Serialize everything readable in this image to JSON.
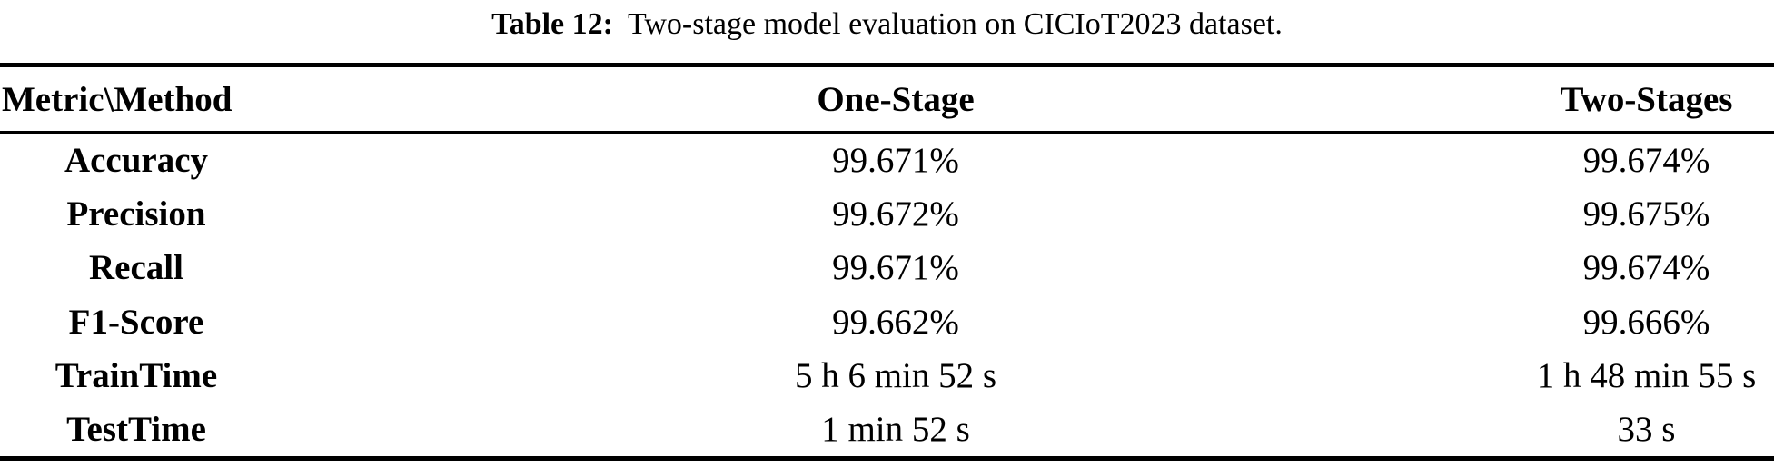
{
  "caption": {
    "label": "Table 12:",
    "text": "Two-stage model evaluation on CICIoT2023 dataset."
  },
  "table": {
    "columns": [
      "Metric\\Method",
      "One-Stage",
      "Two-Stages"
    ],
    "rows": [
      {
        "metric": "Accuracy",
        "one_stage": "99.671%",
        "two_stages": "99.674%"
      },
      {
        "metric": "Precision",
        "one_stage": "99.672%",
        "two_stages": "99.675%"
      },
      {
        "metric": "Recall",
        "one_stage": "99.671%",
        "two_stages": "99.674%"
      },
      {
        "metric": "F1-Score",
        "one_stage": "99.662%",
        "two_stages": "99.666%"
      },
      {
        "metric": "TrainTime",
        "one_stage": "5 h 6 min 52 s",
        "two_stages": "1 h 48 min 55 s"
      },
      {
        "metric": "TestTime",
        "one_stage": "1 min 52 s",
        "two_stages": "33 s"
      }
    ]
  },
  "colors": {
    "text": "#000000",
    "background": "#ffffff",
    "rule": "#000000"
  }
}
